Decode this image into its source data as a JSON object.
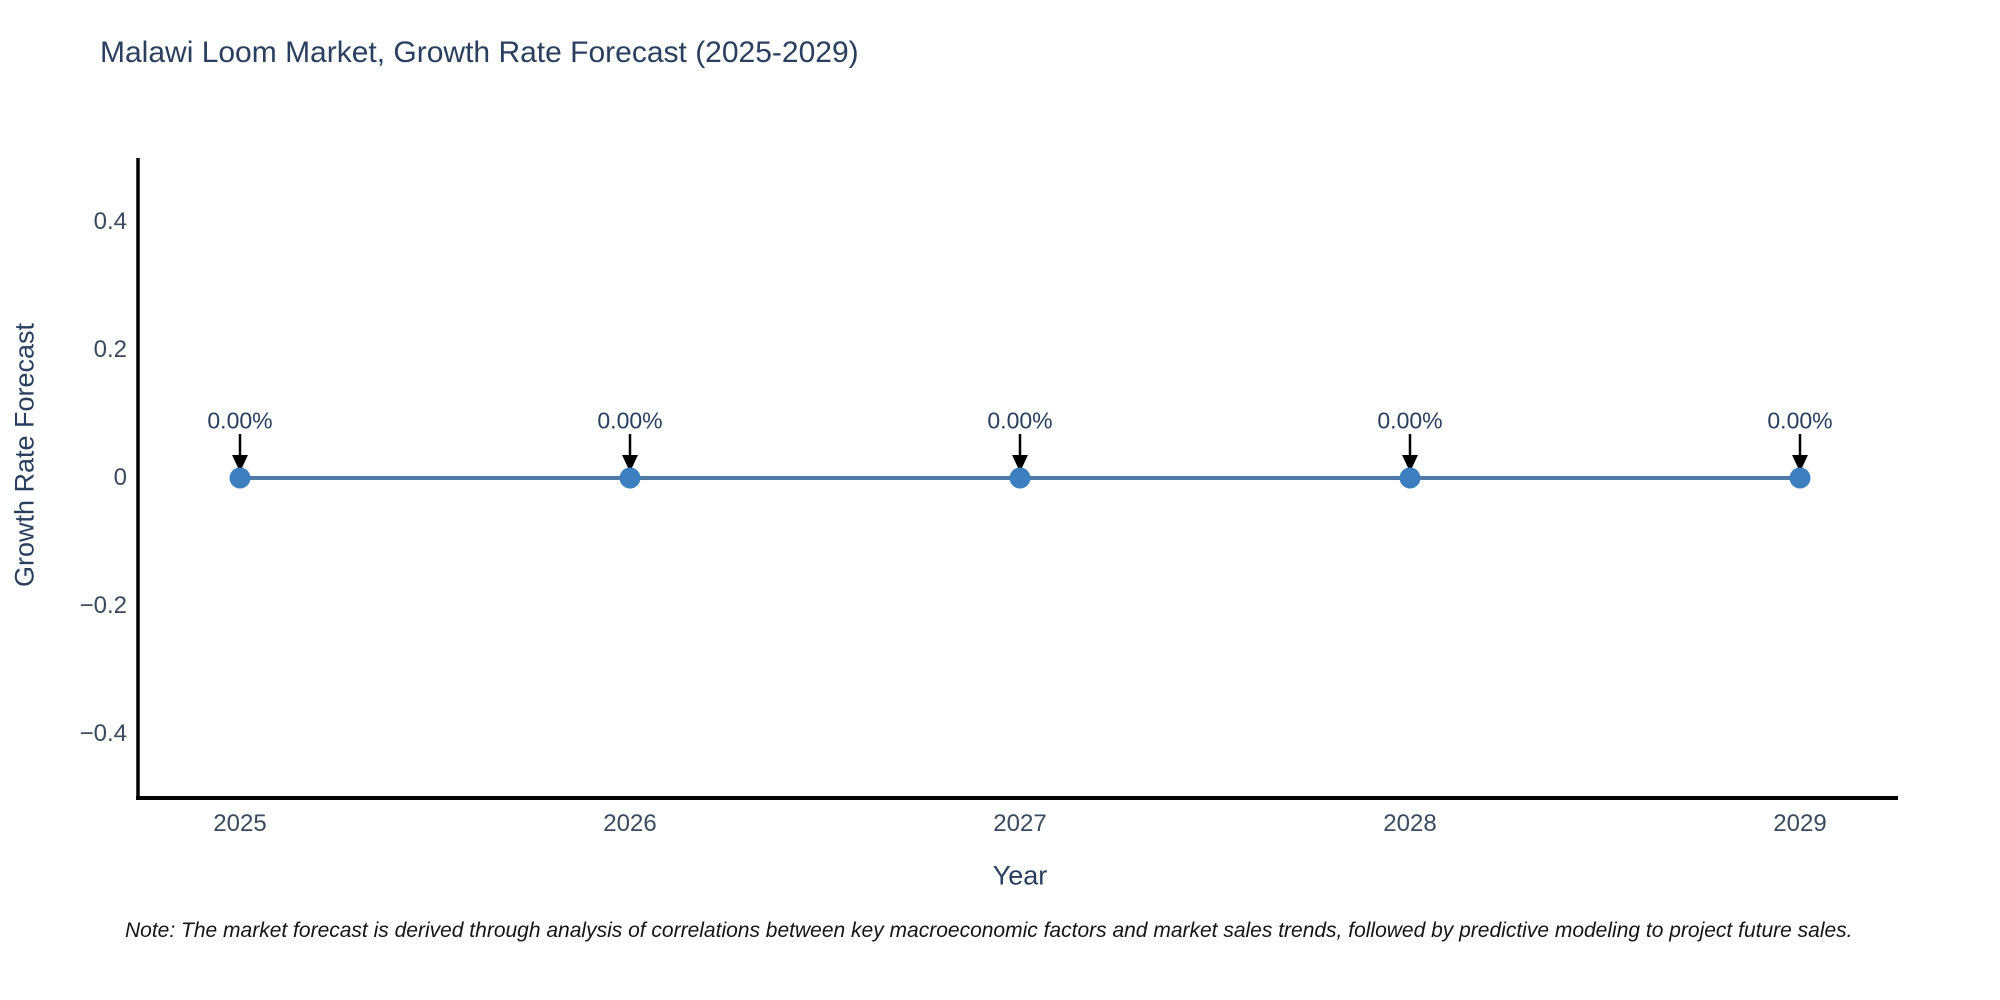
{
  "title": "Malawi Loom Market, Growth Rate Forecast (2025-2029)",
  "footnote": "Note: The market forecast is derived through analysis of correlations between key macroeconomic factors and market sales trends, followed by predictive modeling to project future sales.",
  "chart_data": {
    "type": "line",
    "title": "Malawi Loom Market, Growth Rate Forecast (2025-2029)",
    "xlabel": "Year",
    "ylabel": "Growth Rate Forecast",
    "x": [
      2025,
      2026,
      2027,
      2028,
      2029
    ],
    "xtick_labels": [
      "2025",
      "2026",
      "2027",
      "2028",
      "2029"
    ],
    "series": [
      {
        "name": "Growth Rate Forecast",
        "values": [
          0,
          0,
          0,
          0,
          0
        ]
      }
    ],
    "point_labels": [
      "0.00%",
      "0.00%",
      "0.00%",
      "0.00%",
      "0.00%"
    ],
    "ylim": [
      -0.5,
      0.5
    ],
    "yticks": [
      0.4,
      0.2,
      0,
      -0.2,
      -0.4
    ],
    "ytick_labels": [
      "0.4",
      "0.2",
      "0",
      "−0.2",
      "−0.4"
    ],
    "grid": false,
    "legend": "none",
    "colors": {
      "line": "#4f7aa5",
      "marker": "#3c7ebf",
      "arrow": "#000000",
      "axis": "#000000",
      "title_text": "#2a3f5f",
      "tick_text": "#3b4a5f",
      "note_text": "#141414"
    }
  }
}
